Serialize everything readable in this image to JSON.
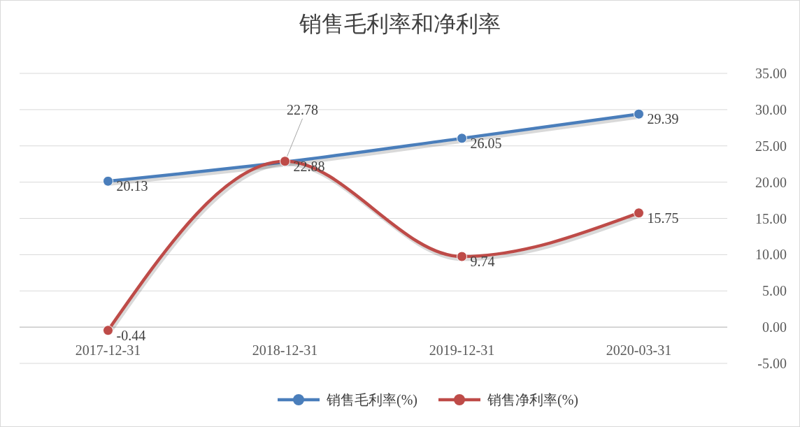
{
  "chart_data": {
    "type": "line",
    "title": "销售毛利率和净利率",
    "categories": [
      "2017-12-31",
      "2018-12-31",
      "2019-12-31",
      "2020-03-31"
    ],
    "series": [
      {
        "name": "销售毛利率(%)",
        "color": "#4a7ebb",
        "values": [
          20.13,
          22.78,
          26.05,
          29.39
        ]
      },
      {
        "name": "销售净利率(%)",
        "color": "#be4b48",
        "values": [
          -0.44,
          22.88,
          9.74,
          15.75
        ]
      }
    ],
    "ylim": [
      -5,
      35
    ],
    "yticks": [
      {
        "value": -5,
        "label": "-5.00"
      },
      {
        "value": 0,
        "label": "0.00"
      },
      {
        "value": 5,
        "label": "5.00"
      },
      {
        "value": 10,
        "label": "10.00"
      },
      {
        "value": 15,
        "label": "15.00"
      },
      {
        "value": 20,
        "label": "20.00"
      },
      {
        "value": 25,
        "label": "25.00"
      },
      {
        "value": 30,
        "label": "30.00"
      },
      {
        "value": 35,
        "label": "35.00"
      }
    ],
    "grid": "y",
    "legend": "bottom",
    "marker": "circle",
    "line_style": "solid",
    "data_labels": true
  }
}
